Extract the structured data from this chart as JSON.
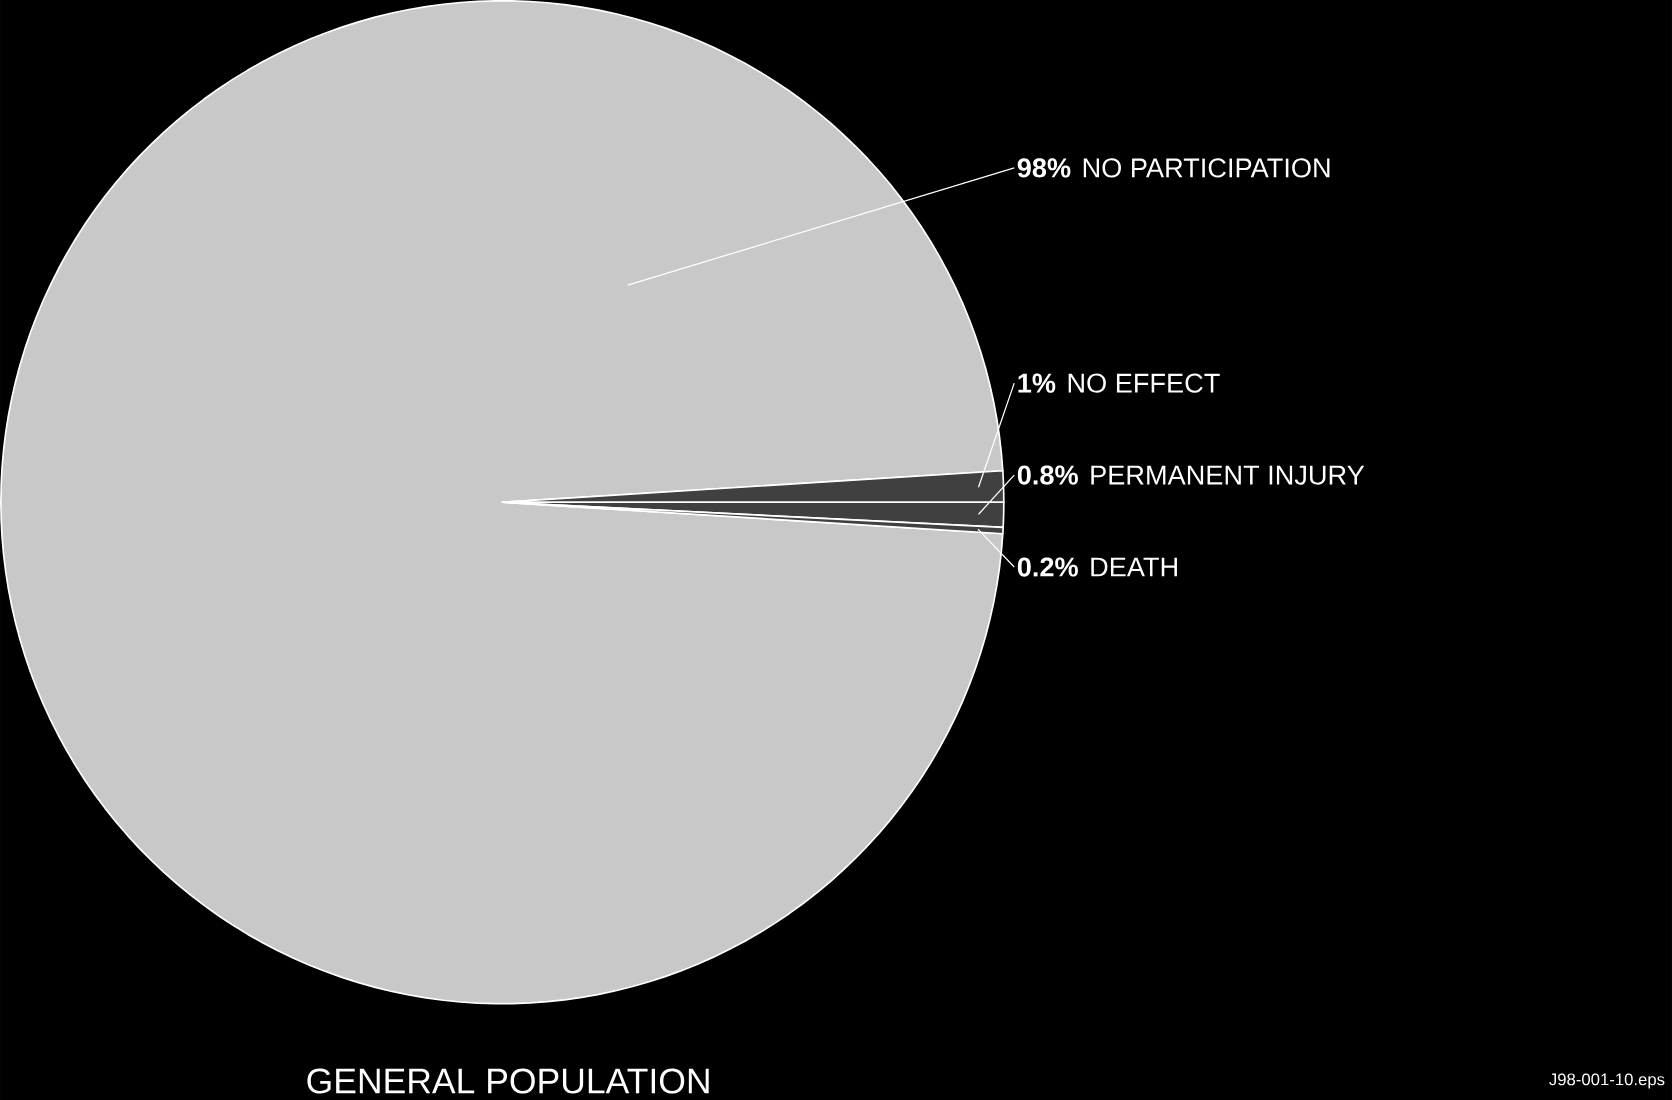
{
  "chart_data": {
    "type": "pie",
    "title": "GENERAL POPULATION",
    "categories": [
      "NO PARTICIPATION",
      "NO EFFECT",
      "PERMANENT INJURY",
      "DEATH"
    ],
    "values": [
      98,
      1,
      0.8,
      0.2
    ],
    "colors": [
      "#c8c8c8",
      "#404040",
      "#404040",
      "#404040"
    ],
    "value_labels": [
      "98%",
      "1%",
      "0.8%",
      "0.2%"
    ],
    "annotations": [
      "J98-001-10.eps"
    ]
  }
}
